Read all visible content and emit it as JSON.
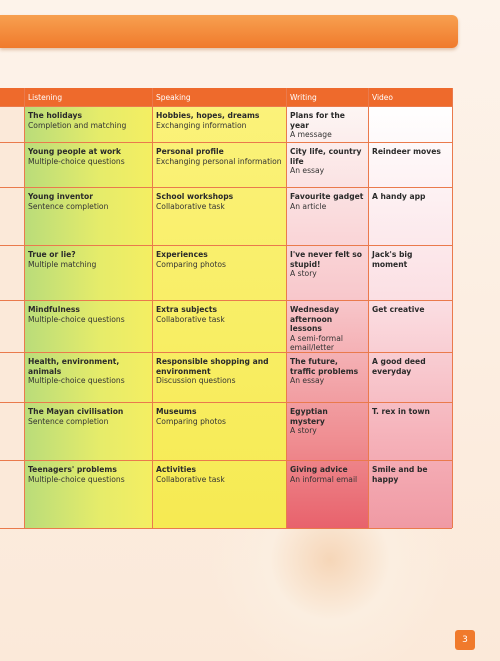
{
  "table": {
    "columns": [
      "Listening",
      "Speaking",
      "Writing",
      "Video"
    ],
    "rows": [
      [
        {
          "title": "The holidays",
          "subtitle": "Completion and matching"
        },
        {
          "title": "Hobbies, hopes, dreams",
          "subtitle": "Exchanging information"
        },
        {
          "title": "Plans for the year",
          "subtitle": "A message"
        },
        null
      ],
      [
        {
          "title": "Young people at work",
          "subtitle": "Multiple-choice questions"
        },
        {
          "title": "Personal profile",
          "subtitle": "Exchanging personal information"
        },
        {
          "title": "City life, country life",
          "subtitle": "An essay"
        },
        {
          "title": "Reindeer moves"
        }
      ],
      [
        {
          "title": "Young inventor",
          "subtitle": "Sentence completion"
        },
        {
          "title": "School workshops",
          "subtitle": "Collaborative task"
        },
        {
          "title": "Favourite gadget",
          "subtitle": "An article"
        },
        {
          "title": "A handy app"
        }
      ],
      [
        {
          "title": "True or lie?",
          "subtitle": "Multiple matching"
        },
        {
          "title": "Experiences",
          "subtitle": "Comparing photos"
        },
        {
          "title": "I've never felt so stupid!",
          "subtitle": "A story"
        },
        {
          "title": "Jack's big moment"
        }
      ],
      [
        {
          "title": "Mindfulness",
          "subtitle": "Multiple-choice questions"
        },
        {
          "title": "Extra subjects",
          "subtitle": "Collaborative task"
        },
        {
          "title": "Wednesday afternoon lessons",
          "subtitle": "A semi-formal email/letter"
        },
        {
          "title": "Get creative"
        }
      ],
      [
        {
          "title": "Health, environment, animals",
          "subtitle": "Multiple-choice questions"
        },
        {
          "title": "Responsible shopping and environment",
          "subtitle": "Discussion questions"
        },
        {
          "title": "The future, traffic problems",
          "subtitle": "An essay"
        },
        {
          "title": "A good deed everyday"
        }
      ],
      [
        {
          "title": "The Mayan civilisation",
          "subtitle": "Sentence completion"
        },
        {
          "title": "Museums",
          "subtitle": "Comparing photos"
        },
        {
          "title": "Egyptian mystery",
          "subtitle": "A story"
        },
        {
          "title": "T. rex in town"
        }
      ],
      [
        {
          "title": "Teenagers' problems",
          "subtitle": "Multiple-choice questions"
        },
        {
          "title": "Activities",
          "subtitle": "Collaborative task"
        },
        {
          "title": "Giving advice",
          "subtitle": "An informal email"
        },
        {
          "title": "Smile and be happy"
        }
      ]
    ]
  },
  "page_number": "3"
}
